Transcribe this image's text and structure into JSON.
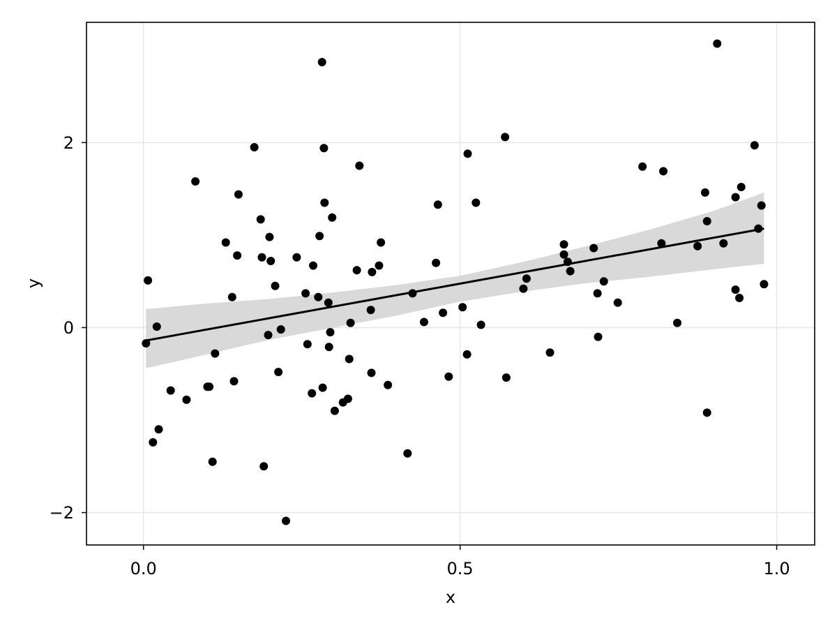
{
  "chart_data": {
    "type": "scatter",
    "title": "",
    "xlabel": "x",
    "ylabel": "y",
    "xlim": [
      -0.09,
      1.06
    ],
    "ylim": [
      -2.35,
      3.3
    ],
    "x_ticks": [
      0.0,
      0.5,
      1.0
    ],
    "x_tick_labels": [
      "0.0",
      "0.5",
      "1.0"
    ],
    "y_ticks": [
      -2,
      0,
      2
    ],
    "y_tick_labels": [
      "−2",
      "0",
      "2"
    ],
    "grid": true,
    "legend": "none",
    "colors": {
      "points": "#000000",
      "fit_line": "#000000",
      "band": "#d9d9d9",
      "grid": "#e6e6e6",
      "frame": "#000000"
    },
    "series": [
      {
        "type": "scatter",
        "points": [
          [
            0.004,
            -0.17
          ],
          [
            0.007,
            0.51
          ],
          [
            0.015,
            -1.24
          ],
          [
            0.021,
            0.01
          ],
          [
            0.024,
            -1.1
          ],
          [
            0.043,
            -0.68
          ],
          [
            0.068,
            -0.78
          ],
          [
            0.082,
            1.58
          ],
          [
            0.101,
            -0.64
          ],
          [
            0.104,
            -0.64
          ],
          [
            0.109,
            -1.45
          ],
          [
            0.113,
            -0.28
          ],
          [
            0.13,
            0.92
          ],
          [
            0.14,
            0.33
          ],
          [
            0.143,
            -0.58
          ],
          [
            0.148,
            0.78
          ],
          [
            0.15,
            1.44
          ],
          [
            0.175,
            1.95
          ],
          [
            0.185,
            1.17
          ],
          [
            0.187,
            0.76
          ],
          [
            0.19,
            -1.5
          ],
          [
            0.197,
            -0.08
          ],
          [
            0.199,
            0.98
          ],
          [
            0.201,
            0.72
          ],
          [
            0.208,
            0.45
          ],
          [
            0.213,
            -0.48
          ],
          [
            0.217,
            -0.02
          ],
          [
            0.225,
            -2.09
          ],
          [
            0.242,
            0.76
          ],
          [
            0.256,
            0.37
          ],
          [
            0.259,
            -0.18
          ],
          [
            0.266,
            -0.71
          ],
          [
            0.268,
            0.67
          ],
          [
            0.276,
            0.33
          ],
          [
            0.278,
            0.99
          ],
          [
            0.282,
            2.87
          ],
          [
            0.283,
            -0.65
          ],
          [
            0.285,
            1.94
          ],
          [
            0.286,
            1.35
          ],
          [
            0.292,
            0.27
          ],
          [
            0.293,
            -0.21
          ],
          [
            0.295,
            -0.05
          ],
          [
            0.298,
            1.19
          ],
          [
            0.302,
            -0.9
          ],
          [
            0.315,
            -0.81
          ],
          [
            0.323,
            -0.77
          ],
          [
            0.325,
            -0.34
          ],
          [
            0.327,
            0.05
          ],
          [
            0.337,
            0.62
          ],
          [
            0.341,
            1.75
          ],
          [
            0.359,
            0.19
          ],
          [
            0.36,
            -0.49
          ],
          [
            0.361,
            0.6
          ],
          [
            0.372,
            0.67
          ],
          [
            0.375,
            0.92
          ],
          [
            0.386,
            -0.62
          ],
          [
            0.417,
            -1.36
          ],
          [
            0.425,
            0.37
          ],
          [
            0.443,
            0.06
          ],
          [
            0.462,
            0.7
          ],
          [
            0.465,
            1.33
          ],
          [
            0.473,
            0.16
          ],
          [
            0.482,
            -0.53
          ],
          [
            0.504,
            0.22
          ],
          [
            0.511,
            -0.29
          ],
          [
            0.512,
            1.88
          ],
          [
            0.525,
            1.35
          ],
          [
            0.533,
            0.03
          ],
          [
            0.571,
            2.06
          ],
          [
            0.573,
            -0.54
          ],
          [
            0.6,
            0.42
          ],
          [
            0.605,
            0.53
          ],
          [
            0.642,
            -0.27
          ],
          [
            0.664,
            0.79
          ],
          [
            0.664,
            0.9
          ],
          [
            0.67,
            0.71
          ],
          [
            0.674,
            0.61
          ],
          [
            0.711,
            0.86
          ],
          [
            0.717,
            0.37
          ],
          [
            0.718,
            -0.1
          ],
          [
            0.727,
            0.5
          ],
          [
            0.749,
            0.27
          ],
          [
            0.788,
            1.74
          ],
          [
            0.818,
            0.91
          ],
          [
            0.821,
            1.69
          ],
          [
            0.843,
            0.05
          ],
          [
            0.875,
            0.88
          ],
          [
            0.887,
            1.46
          ],
          [
            0.89,
            1.15
          ],
          [
            0.89,
            -0.92
          ],
          [
            0.906,
            3.07
          ],
          [
            0.916,
            0.91
          ],
          [
            0.935,
            1.41
          ],
          [
            0.935,
            0.41
          ],
          [
            0.941,
            0.32
          ],
          [
            0.944,
            1.52
          ],
          [
            0.965,
            1.97
          ],
          [
            0.971,
            1.07
          ],
          [
            0.976,
            1.32
          ],
          [
            0.98,
            0.47
          ]
        ]
      },
      {
        "type": "line",
        "x": [
          0.004,
          0.98
        ],
        "y": [
          -0.14,
          1.07
        ]
      },
      {
        "type": "area",
        "x": [
          0.004,
          0.1,
          0.2,
          0.3,
          0.4,
          0.5,
          0.6,
          0.7,
          0.8,
          0.9,
          0.98
        ],
        "upper": [
          0.2,
          0.26,
          0.31,
          0.38,
          0.46,
          0.56,
          0.71,
          0.88,
          1.06,
          1.26,
          1.46
        ],
        "lower": [
          -0.44,
          -0.29,
          -0.13,
          0.0,
          0.13,
          0.28,
          0.39,
          0.48,
          0.55,
          0.63,
          0.69
        ]
      }
    ]
  }
}
